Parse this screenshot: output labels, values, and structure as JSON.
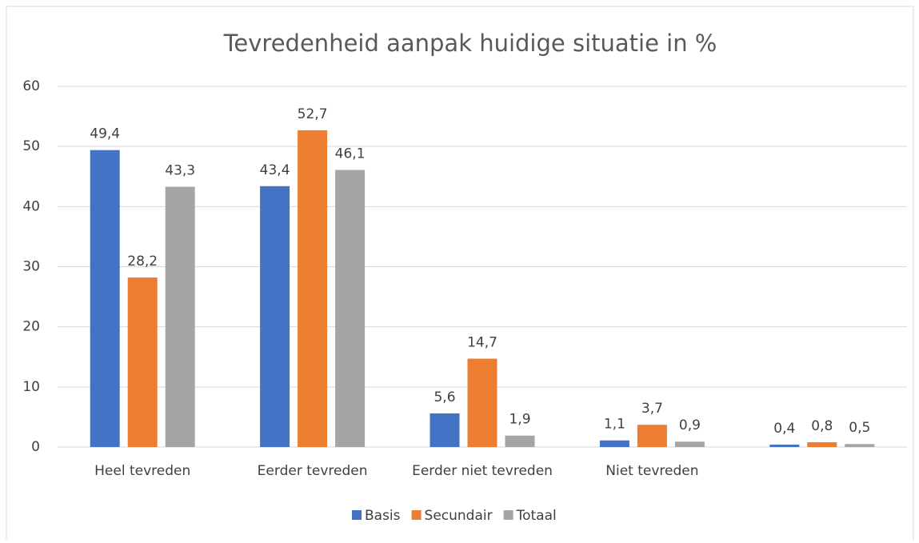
{
  "chart_data": {
    "type": "bar",
    "title": "Tevredenheid aanpak huidige situatie in %",
    "categories": [
      "Heel tevreden",
      "Eerder tevreden",
      "Eerder niet tevreden",
      "Niet tevreden",
      null
    ],
    "series": [
      {
        "name": "Basis",
        "color": "#4472c4",
        "values": [
          49.4,
          43.4,
          5.6,
          1.1,
          0.4
        ],
        "value_labels": [
          "49,4",
          "43,4",
          "5,6",
          "1,1",
          "0,4"
        ]
      },
      {
        "name": "Secundair",
        "color": "#ed7d31",
        "values": [
          28.2,
          52.7,
          14.7,
          3.7,
          0.8
        ],
        "value_labels": [
          "28,2",
          "52,7",
          "14,7",
          "3,7",
          "0,8"
        ]
      },
      {
        "name": "Totaal",
        "color": "#a5a5a5",
        "values": [
          43.3,
          46.1,
          1.9,
          0.9,
          0.5
        ],
        "value_labels": [
          "43,3",
          "46,1",
          "1,9",
          "0,9",
          "0,5"
        ]
      }
    ],
    "ylim": [
      0,
      60
    ],
    "yticks": [
      0,
      10,
      20,
      30,
      40,
      50,
      60
    ],
    "grid": true,
    "legend": "bottom"
  }
}
